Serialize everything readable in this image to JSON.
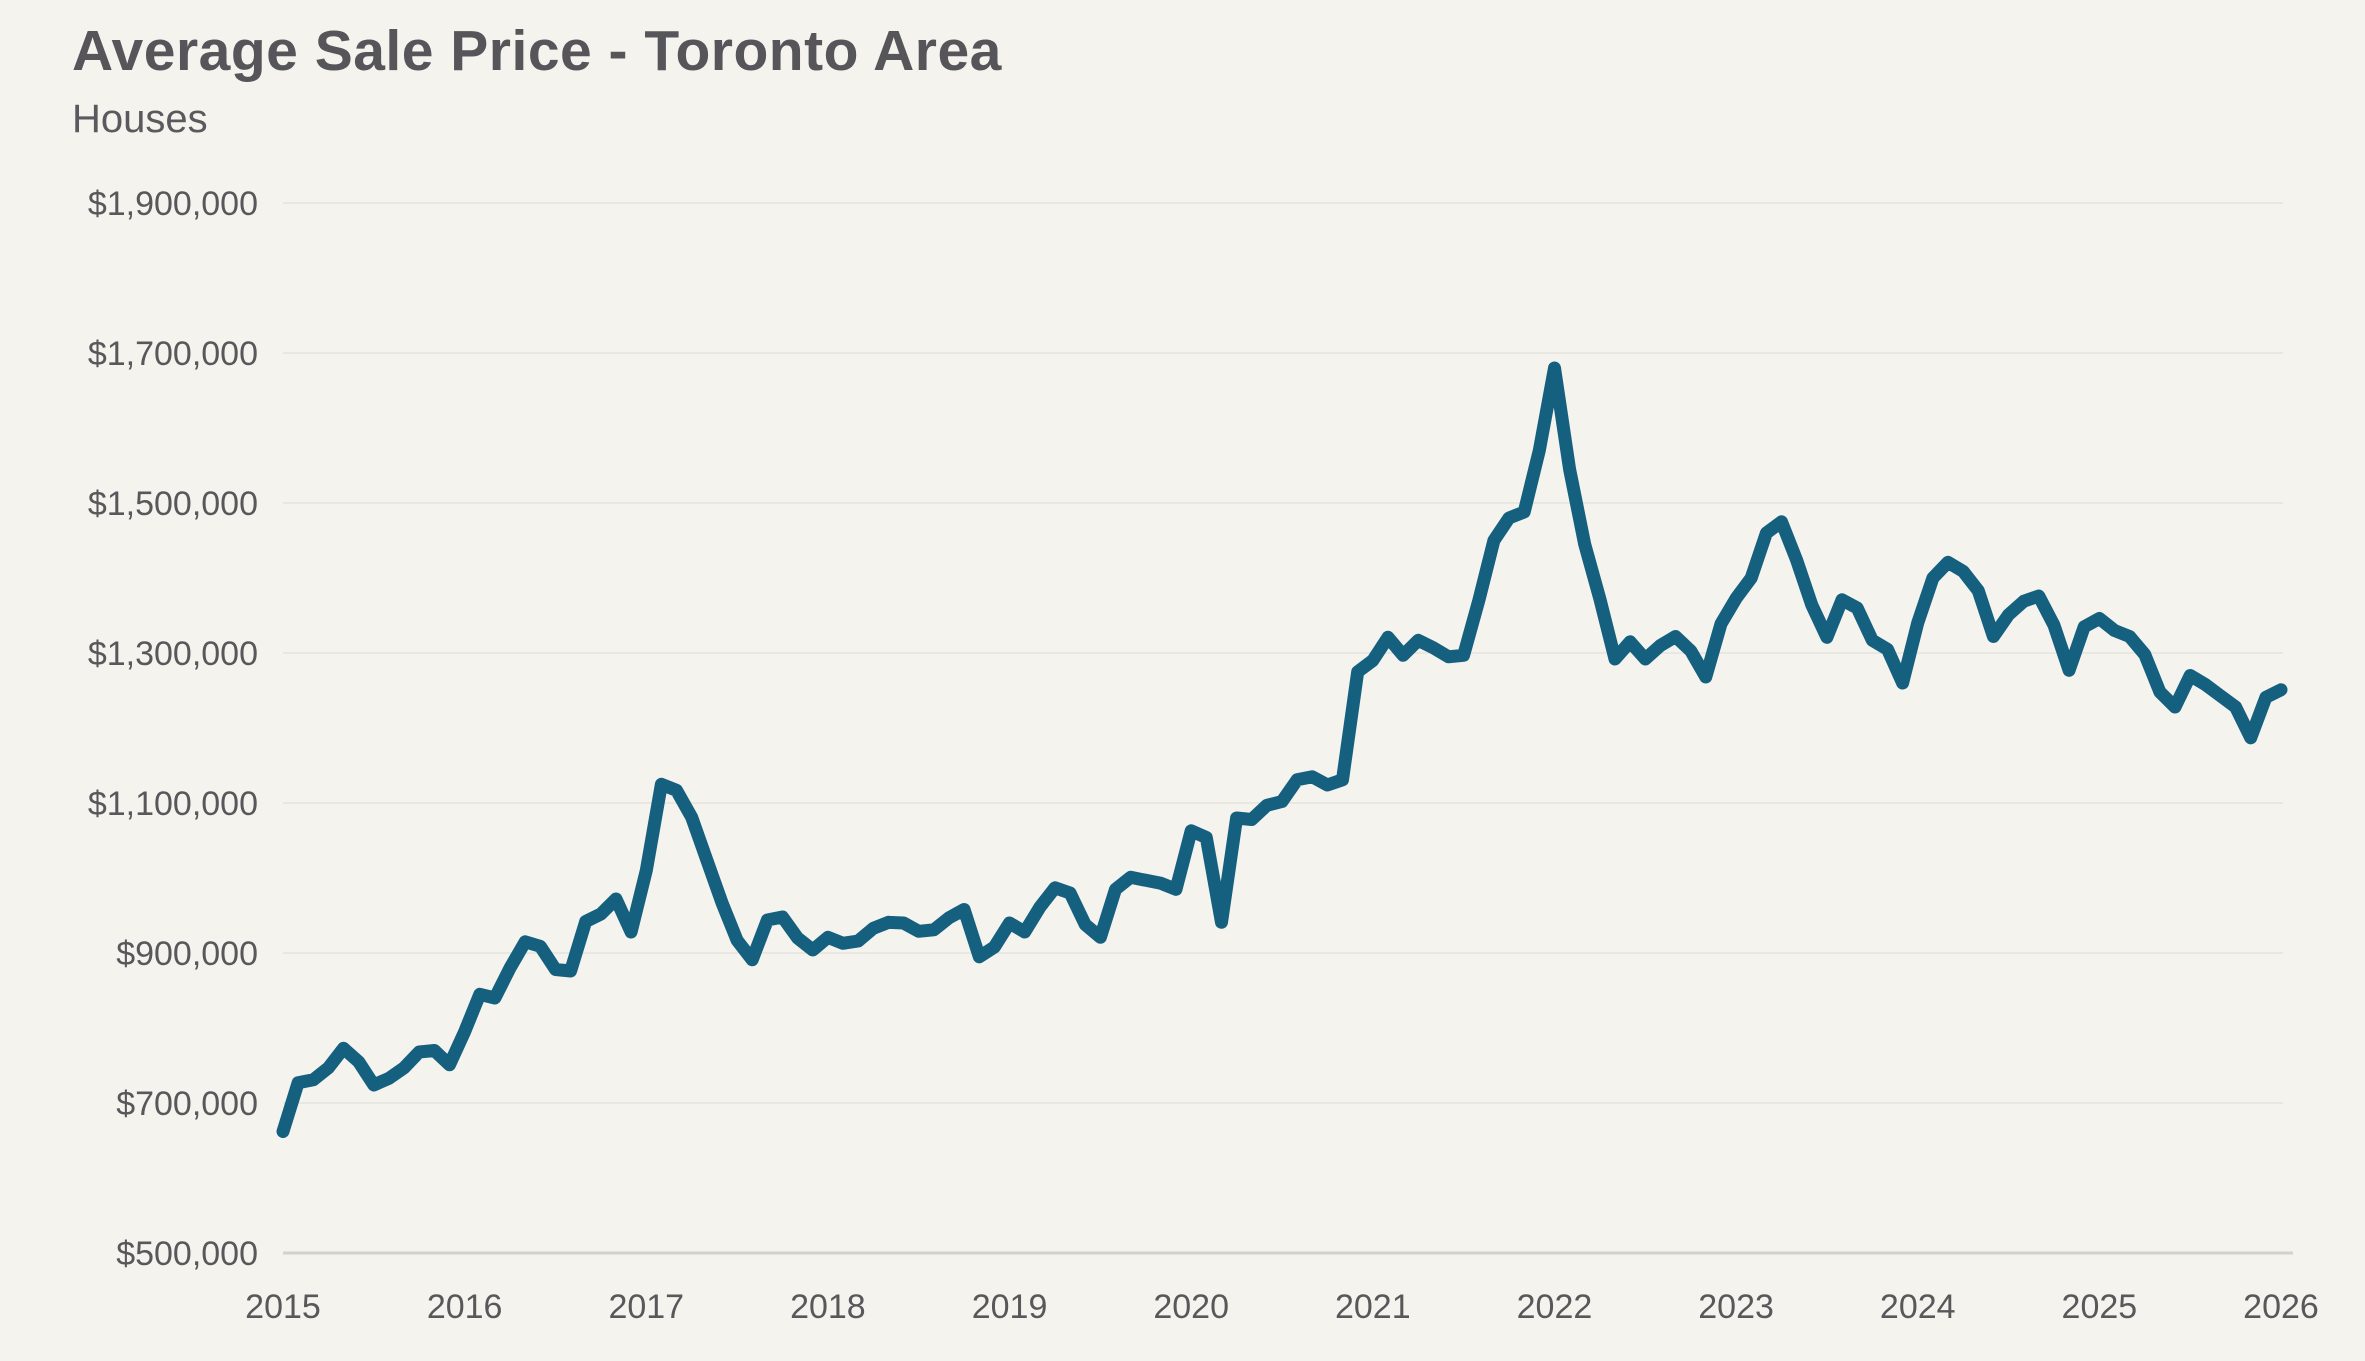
{
  "header": {
    "title": "Average Sale Price - Toronto Area",
    "subtitle": "Houses"
  },
  "styles": {
    "background": "#f5f3ee",
    "line_color": "#15607f",
    "grid_color": "#e4e3de",
    "axis_color": "#d2d1cc",
    "text_color": "#58585b"
  },
  "chart_data": {
    "type": "line",
    "title": "Average Sale Price - Toronto Area",
    "subtitle": "Houses",
    "grid": true,
    "legend": false,
    "x_axis": {
      "tick_labels": [
        "2015",
        "2016",
        "2017",
        "2018",
        "2019",
        "2020",
        "2021",
        "2022",
        "2023",
        "2024",
        "2025",
        "2026"
      ],
      "frequency": "monthly",
      "start": "2015-01",
      "end": "2026-01"
    },
    "y_axis": {
      "min": 500000,
      "max": 1900000,
      "step": 200000,
      "ticks": [
        {
          "label": "$1,900,000",
          "value": 1900000
        },
        {
          "label": "$1,700,000",
          "value": 1700000
        },
        {
          "label": "$1,500,000",
          "value": 1500000
        },
        {
          "label": "$1,300,000",
          "value": 1300000
        },
        {
          "label": "$1,100,000",
          "value": 1100000
        },
        {
          "label": "$900,000",
          "value": 900000
        },
        {
          "label": "$700,000",
          "value": 700000
        },
        {
          "label": "$500,000",
          "value": 500000
        }
      ]
    },
    "series": [
      {
        "name": "Average Sale Price",
        "color": "#15607f",
        "values": [
          662000,
          727000,
          731000,
          747000,
          773000,
          755000,
          724000,
          733000,
          747000,
          768000,
          770000,
          751000,
          795000,
          845000,
          840000,
          880000,
          915000,
          909000,
          878000,
          876000,
          942000,
          952000,
          972000,
          928000,
          1010000,
          1125000,
          1117000,
          1081000,
          1024000,
          967000,
          917000,
          891000,
          944000,
          948000,
          920000,
          904000,
          921000,
          913000,
          916000,
          933000,
          941000,
          940000,
          929000,
          931000,
          947000,
          958000,
          895000,
          908000,
          940000,
          928000,
          961000,
          987000,
          980000,
          938000,
          921000,
          985000,
          1001000,
          997000,
          993000,
          985000,
          1063000,
          1054000,
          941000,
          1080000,
          1078000,
          1097000,
          1102000,
          1131000,
          1135000,
          1124000,
          1131000,
          1275000,
          1290000,
          1321000,
          1297000,
          1317000,
          1307000,
          1295000,
          1297000,
          1370000,
          1450000,
          1480000,
          1488000,
          1570000,
          1680000,
          1545000,
          1445000,
          1372000,
          1292000,
          1315000,
          1292000,
          1310000,
          1322000,
          1303000,
          1268000,
          1339000,
          1373000,
          1400000,
          1460000,
          1475000,
          1424000,
          1364000,
          1321000,
          1371000,
          1360000,
          1317000,
          1305000,
          1260000,
          1340000,
          1400000,
          1421000,
          1409000,
          1383000,
          1322000,
          1351000,
          1369000,
          1376000,
          1337000,
          1277000,
          1335000,
          1346000,
          1330000,
          1322000,
          1298000,
          1248000,
          1228000,
          1270000,
          1258000,
          1243000,
          1228000,
          1187000,
          1241000,
          1251000
        ]
      }
    ]
  }
}
